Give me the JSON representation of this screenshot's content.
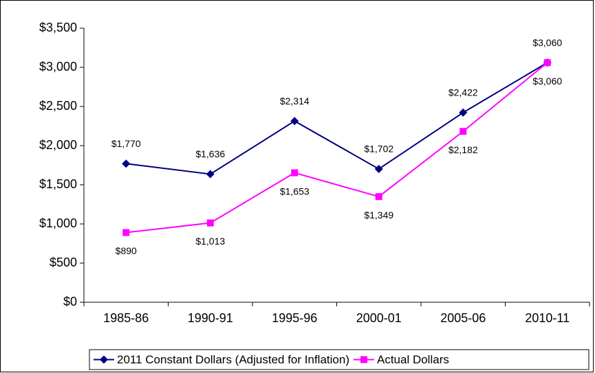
{
  "chart_data": {
    "type": "line",
    "categories": [
      "1985-86",
      "1990-91",
      "1995-96",
      "2000-01",
      "2005-06",
      "2010-11"
    ],
    "series": [
      {
        "name": "2011 Constant Dollars (Adjusted for Inflation)",
        "color": "#000080",
        "marker": "diamond",
        "values": [
          1770,
          1636,
          2314,
          1702,
          2422,
          3060
        ],
        "value_labels": [
          "$1,770",
          "$1,636",
          "$2,314",
          "$1,702",
          "$2,422",
          "$3,060"
        ]
      },
      {
        "name": "Actual Dollars",
        "color": "#ff00ff",
        "marker": "square",
        "values": [
          890,
          1013,
          1653,
          1349,
          2182,
          3060
        ],
        "value_labels": [
          "$890",
          "$1,013",
          "$1,653",
          "$1,349",
          "$2,182",
          "$3,060"
        ]
      }
    ],
    "ylim": [
      0,
      3500
    ],
    "yticks": [
      {
        "value": 0,
        "label": "$0"
      },
      {
        "value": 500,
        "label": "$500"
      },
      {
        "value": 1000,
        "label": "$1,000"
      },
      {
        "value": 1500,
        "label": "$1,500"
      },
      {
        "value": 2000,
        "label": "$2,000"
      },
      {
        "value": 2500,
        "label": "$2,500"
      },
      {
        "value": 3000,
        "label": "$3,000"
      },
      {
        "value": 3500,
        "label": "$3,500"
      }
    ],
    "grid": false,
    "legend": "bottom"
  }
}
